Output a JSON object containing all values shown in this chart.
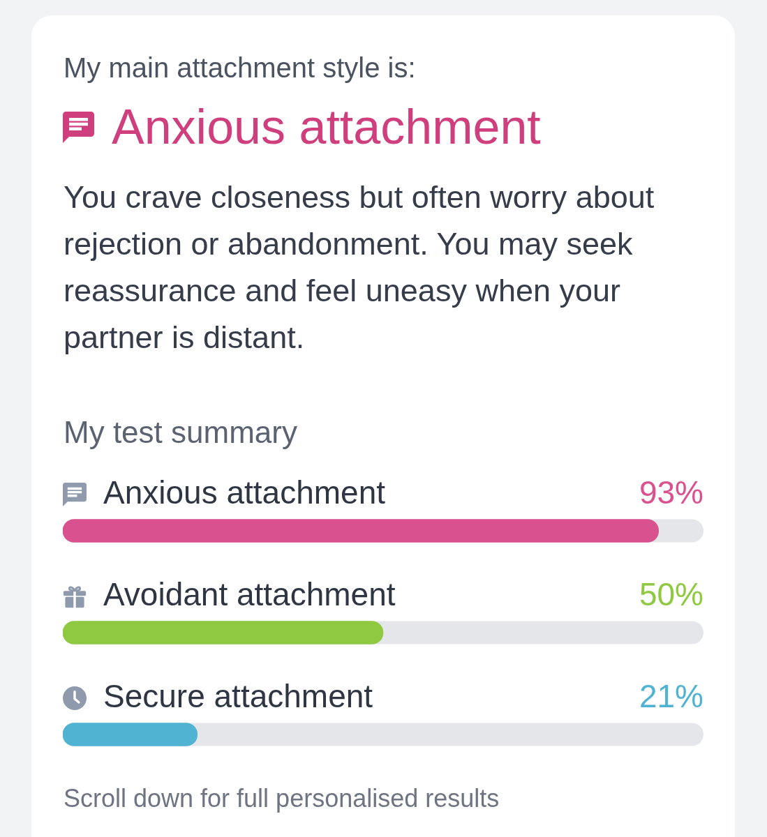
{
  "chart_data": {
    "type": "bar",
    "orientation": "horizontal",
    "title": "My test summary",
    "annotations": [
      "My main attachment style is:",
      "Anxious attachment",
      "You crave closeness but often worry about rejection or abandonment. You may seek reassurance and feel uneasy when your partner is distant.",
      "Scroll down for full personalised results"
    ],
    "categories": [
      "Anxious attachment",
      "Avoidant attachment",
      "Secure attachment"
    ],
    "values": [
      93,
      50,
      21
    ],
    "colors": [
      "#d9528f",
      "#8fc942",
      "#4fb3d1"
    ],
    "value_labels": [
      "93%",
      "50%",
      "21%"
    ],
    "xlim": [
      0,
      100
    ]
  }
}
